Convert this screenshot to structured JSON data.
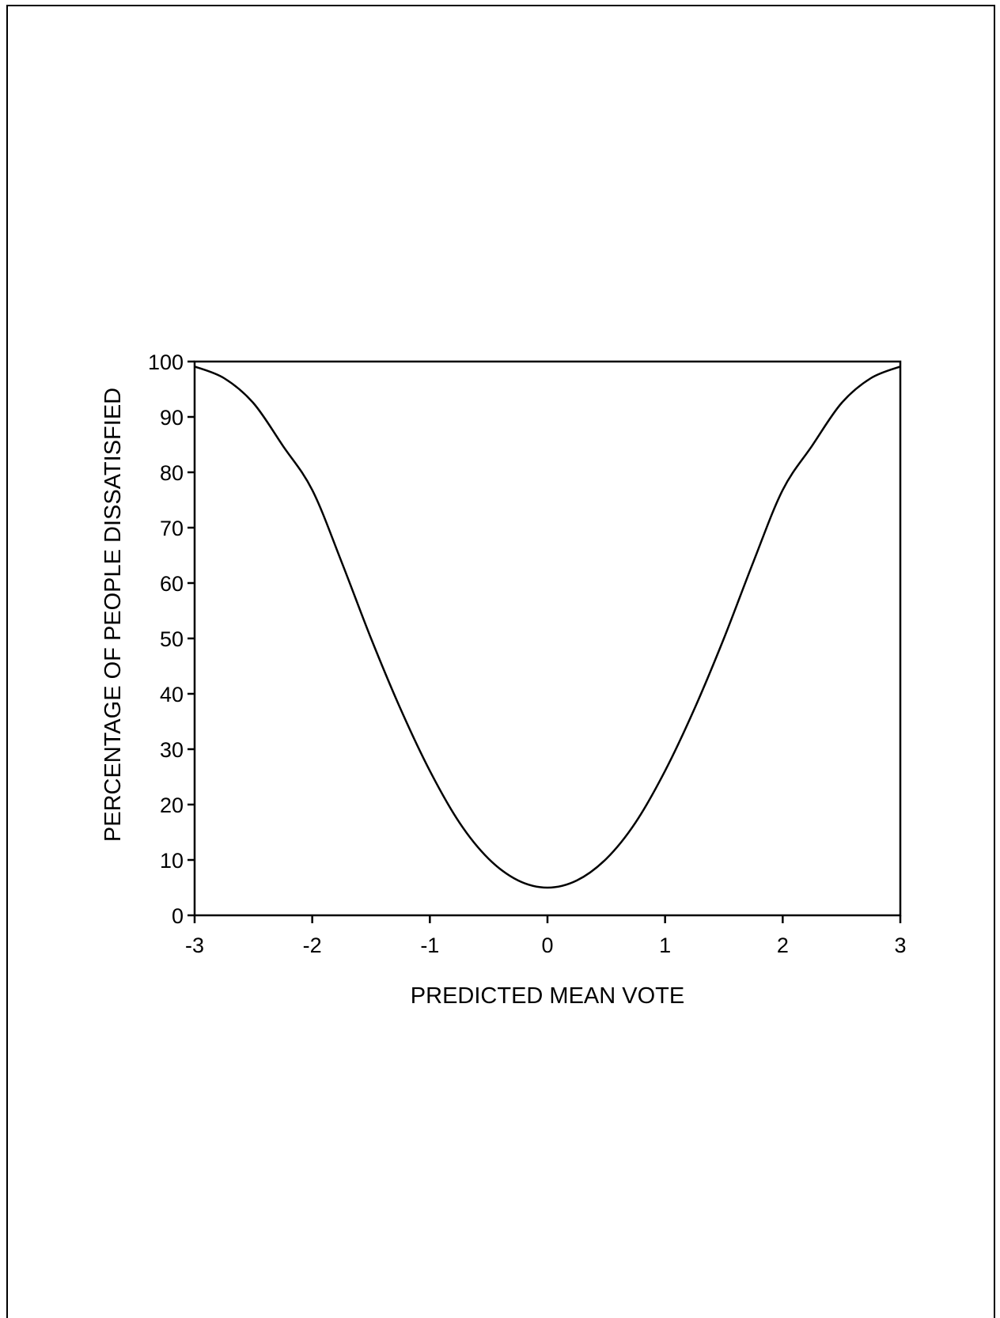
{
  "chart_data": {
    "type": "line",
    "title": "",
    "xlabel": "PREDICTED MEAN VOTE",
    "ylabel": "PERCENTAGE OF PEOPLE DISSATISFIED",
    "xlim": [
      -3,
      3
    ],
    "ylim": [
      0,
      100
    ],
    "x_ticks": [
      "-3",
      "-2",
      "-1",
      "0",
      "1",
      "2",
      "3"
    ],
    "y_ticks": [
      "0",
      "10",
      "20",
      "30",
      "40",
      "50",
      "60",
      "70",
      "80",
      "90",
      "100"
    ],
    "grid": false,
    "legend": "none",
    "colors": {
      "line": "#000000",
      "axes": "#000000"
    },
    "series": [
      {
        "x": [
          -3.0,
          -2.75,
          -2.5,
          -2.25,
          -2.0,
          -1.75,
          -1.5,
          -1.25,
          -1.0,
          -0.75,
          -0.5,
          -0.25,
          0.0,
          0.25,
          0.5,
          0.75,
          1.0,
          1.25,
          1.5,
          1.75,
          2.0,
          2.25,
          2.5,
          2.75,
          3.0
        ],
        "values": [
          99.1,
          97.0,
          92.5,
          84.8,
          76.8,
          63.8,
          50.0,
          37.3,
          26.1,
          16.8,
          10.2,
          6.3,
          5.0,
          6.3,
          10.2,
          16.8,
          26.1,
          37.3,
          50.0,
          63.8,
          76.8,
          84.8,
          92.5,
          97.0,
          99.1
        ]
      }
    ]
  }
}
